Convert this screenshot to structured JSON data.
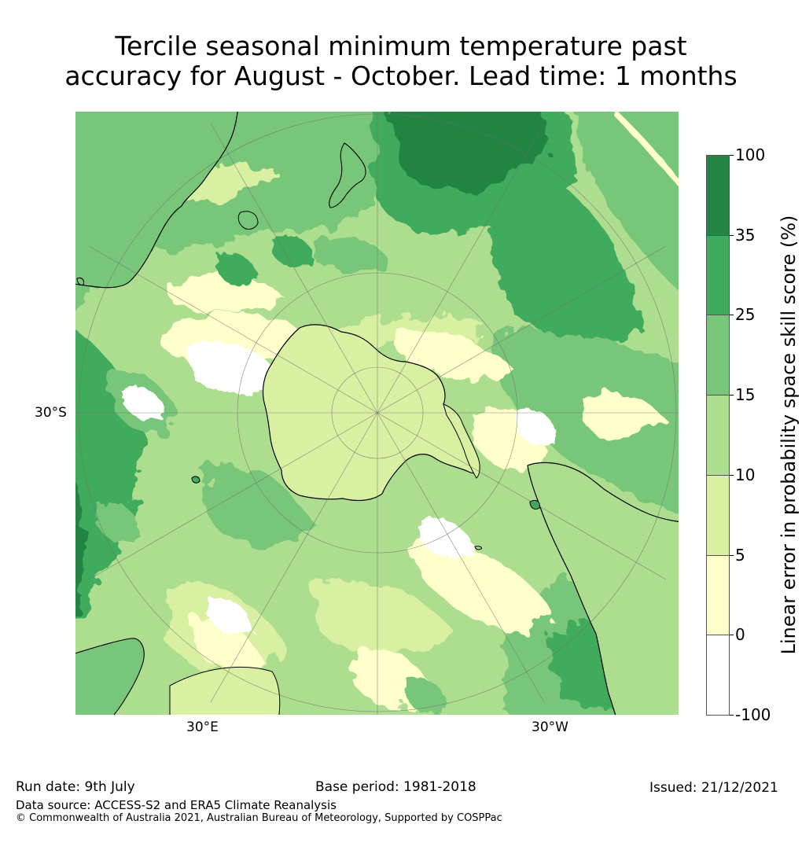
{
  "title": {
    "line1": "Tercile seasonal minimum temperature past",
    "line2": "accuracy for August - October. Lead time: 1 months"
  },
  "map": {
    "projection": "south-polar-stereographic",
    "lat_label": "30°S",
    "lon_labels": [
      "30°E",
      "30°W"
    ]
  },
  "colorbar": {
    "label": "Linear error in probability space skill score (%)",
    "ticks": [
      "100",
      "35",
      "25",
      "15",
      "10",
      "5",
      "0",
      "-100"
    ],
    "bins": [
      {
        "from": 35,
        "to": 100,
        "color": "#238443"
      },
      {
        "from": 25,
        "to": 35,
        "color": "#41ab5d"
      },
      {
        "from": 15,
        "to": 25,
        "color": "#78c679"
      },
      {
        "from": 10,
        "to": 15,
        "color": "#addd8e"
      },
      {
        "from": 5,
        "to": 10,
        "color": "#d9f0a3"
      },
      {
        "from": 0,
        "to": 5,
        "color": "#ffffcc"
      },
      {
        "from": -100,
        "to": 0,
        "color": "#ffffff"
      }
    ]
  },
  "footer": {
    "run_date": "Run date: 9th July",
    "base_period": "Base period: 1981-2018",
    "issued": "Issued: 21/12/2021",
    "data_source": "Data source: ACCESS-S2 and ERA5 Climate Reanalysis",
    "copyright": "© Commonwealth of Australia 2021, Australian Bureau of Meteorology, Supported by COSPPac"
  }
}
